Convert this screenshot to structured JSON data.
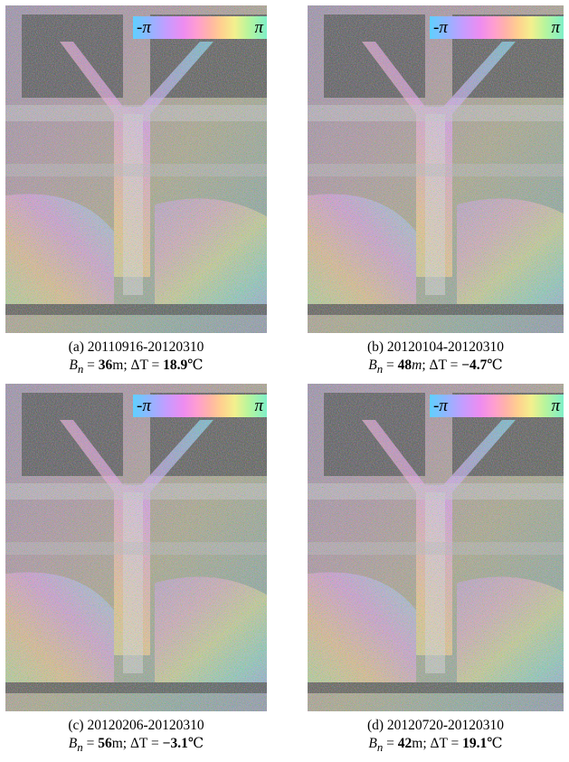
{
  "colorbar": {
    "min_label": "-π",
    "max_label": "π"
  },
  "panels": [
    {
      "caption": "(a)  20110916-20120310",
      "bn_value": "36",
      "dt_value": "18.9"
    },
    {
      "caption": "(b)  20120104-20120310",
      "bn_value": "48",
      "dt_value": "−4.7"
    },
    {
      "caption": "(c)  20120206-20120310",
      "bn_value": "56",
      "dt_value": "−3.1"
    },
    {
      "caption": "(d)  20120720-20120310",
      "bn_value": "42",
      "dt_value": "19.1"
    }
  ],
  "labels": {
    "bn_symbol": "B",
    "bn_sub": "n",
    "bn_unit": "m",
    "equals": " = ",
    "separator": "; ",
    "dt_symbol": "ΔT",
    "dt_unit": "℃"
  }
}
